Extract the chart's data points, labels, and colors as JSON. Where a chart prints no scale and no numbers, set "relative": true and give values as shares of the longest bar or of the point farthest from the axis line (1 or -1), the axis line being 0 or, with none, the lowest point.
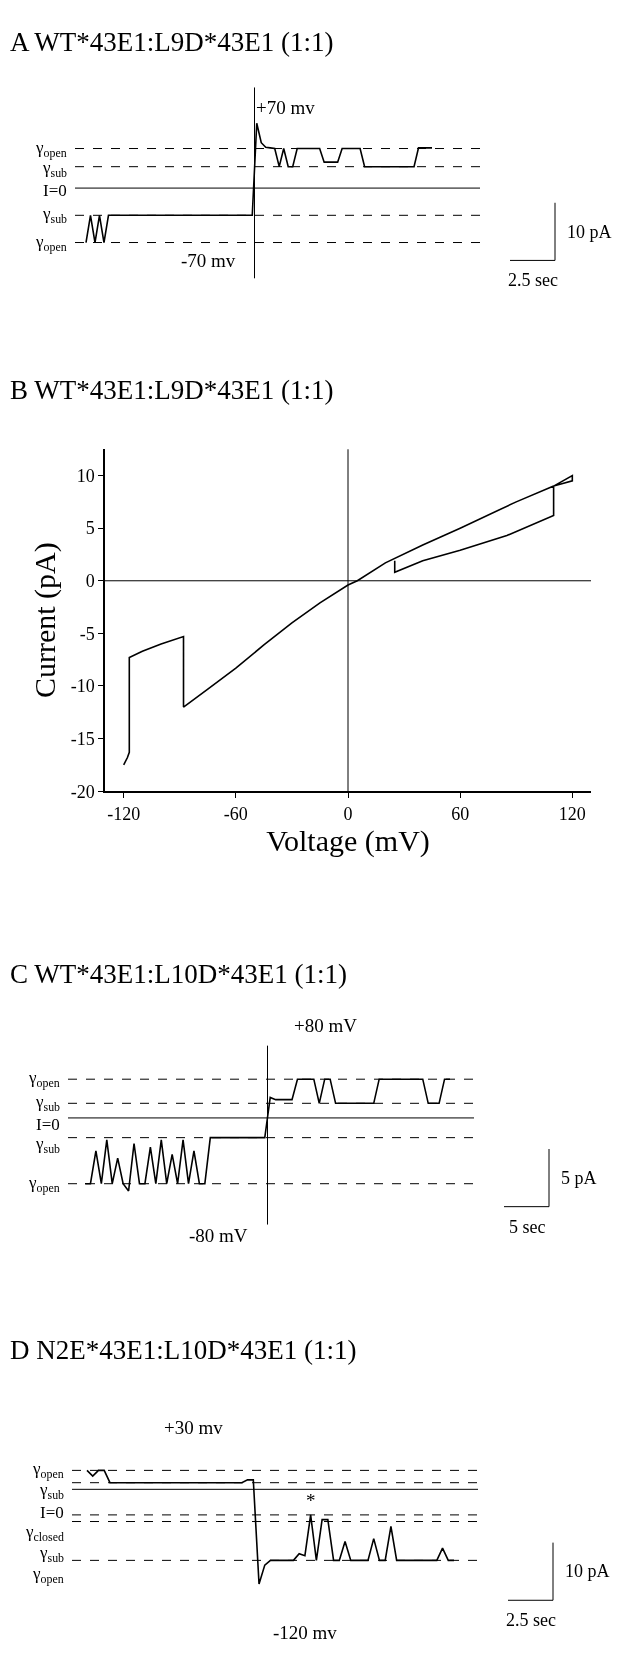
{
  "chart_data": [
    {
      "type": "line",
      "title": "A WT*43E1:L9D*43E1 (1:1)",
      "relative": true,
      "line_style": "solid",
      "marker": "none",
      "categories": [
        null,
        null,
        null,
        null,
        null,
        null,
        null,
        null,
        null,
        null,
        null,
        null,
        null,
        null,
        null,
        null,
        null,
        null,
        null,
        null,
        null,
        null,
        null,
        null,
        null,
        null,
        null,
        null,
        null,
        null,
        null,
        null,
        null,
        null,
        null,
        null,
        null,
        null,
        null,
        null,
        null,
        null,
        null,
        null,
        null,
        null,
        null,
        null,
        null,
        null,
        null,
        null,
        null,
        null,
        null,
        null,
        null,
        null,
        null,
        null,
        null,
        null,
        null,
        null,
        null,
        null,
        null,
        null,
        null,
        null,
        null,
        null,
        null,
        null,
        null,
        null,
        null,
        null
      ],
      "series": [
        {
          "color": "#000000",
          "values": [
            -0.84,
            -0.42,
            -0.84,
            -0.42,
            -0.84,
            -0.42,
            -0.42,
            -0.42,
            -0.42,
            -0.42,
            -0.42,
            -0.42,
            -0.42,
            -0.42,
            -0.42,
            -0.42,
            -0.42,
            -0.42,
            -0.42,
            -0.42,
            -0.42,
            -0.42,
            -0.42,
            -0.42,
            -0.42,
            -0.42,
            -0.42,
            -0.42,
            -0.42,
            -0.42,
            -0.42,
            -0.42,
            -0.42,
            -0.42,
            -0.42,
            -0.42,
            -0.42,
            -0.42,
            1.0,
            0.7,
            0.63,
            0.62,
            0.61,
            0.33,
            0.61,
            0.33,
            0.33,
            0.61,
            0.61,
            0.61,
            0.61,
            0.61,
            0.61,
            0.4,
            0.4,
            0.4,
            0.4,
            0.61,
            0.61,
            0.61,
            0.61,
            0.61,
            0.33,
            0.33,
            0.33,
            0.33,
            0.33,
            0.33,
            0.33,
            0.33,
            0.33,
            0.33,
            0.33,
            0.33,
            0.62,
            0.62,
            0.62,
            0.62
          ]
        }
      ],
      "ref_lines": [
        {
          "axis": "y",
          "value": 0.61,
          "label": "γ$_{open}$",
          "line_style": "dashed",
          "color": "#000000"
        },
        {
          "axis": "y",
          "value": 0.33,
          "label": "γ$_{sub}$",
          "line_style": "dashed",
          "color": "#000000"
        },
        {
          "axis": "y",
          "value": 0,
          "label": "I=0",
          "line_style": "solid",
          "color": "#000000"
        },
        {
          "axis": "y",
          "value": -0.42,
          "label": "γ$_{sub}$",
          "line_style": "dashed",
          "color": "#000000"
        },
        {
          "axis": "y",
          "value": -0.84,
          "label": "γ$_{open}$",
          "line_style": "dashed",
          "color": "#000000"
        }
      ],
      "annotations": [
        "10 pA",
        "2.5 sec",
        "+70 mv",
        "-70 mv"
      ]
    },
    {
      "type": "line",
      "title": "B WT*43E1:L9D*43E1 (1:1)",
      "xlabel": "Voltage (mV)",
      "ylabel": "Current (pA)",
      "xlim": [
        -130,
        130
      ],
      "xticks": [
        -120,
        -60,
        0,
        60,
        120
      ],
      "ylim": [
        -20,
        12.5
      ],
      "yticks": [
        -20,
        -15,
        -10,
        -5,
        0,
        5,
        10
      ],
      "line_style": "solid",
      "marker": "none",
      "series": [
        {
          "color": "#000000",
          "x": [
            -120,
            -118,
            -117,
            -117,
            -110,
            -100,
            -88,
            -88,
            -75,
            -60,
            -45,
            -30,
            -15,
            0,
            5,
            20,
            40,
            60,
            90,
            110,
            120,
            120,
            110,
            110,
            85,
            60,
            40,
            25,
            25
          ],
          "values": [
            -17.5,
            -16.8,
            -16.3,
            -7.3,
            -6.7,
            -6.0,
            -5.3,
            -12.0,
            -10.3,
            -8.3,
            -6.1,
            -4.0,
            -2.1,
            -0.4,
            0,
            1.7,
            3.4,
            5.0,
            7.5,
            9.0,
            10.0,
            9.5,
            9.0,
            6.2,
            4.3,
            2.9,
            1.9,
            0.8,
            1.9
          ]
        }
      ],
      "ref_lines": [
        {
          "axis": "x",
          "value": 0,
          "label": null,
          "line_style": "solid",
          "color": "#000000"
        },
        {
          "axis": "y",
          "value": 0,
          "label": null,
          "line_style": "solid",
          "color": "#000000"
        }
      ]
    },
    {
      "type": "line",
      "title": "C WT*43E1:L10D*43E1 (1:1)",
      "relative": true,
      "line_style": "solid",
      "marker": "none",
      "categories": [
        null,
        null,
        null,
        null,
        null,
        null,
        null,
        null,
        null,
        null,
        null,
        null,
        null,
        null,
        null,
        null,
        null,
        null,
        null,
        null,
        null,
        null,
        null,
        null,
        null,
        null,
        null,
        null,
        null,
        null,
        null,
        null,
        null,
        null,
        null,
        null,
        null,
        null,
        null,
        null,
        null,
        null,
        null,
        null,
        null,
        null,
        null,
        null,
        null,
        null,
        null,
        null,
        null,
        null,
        null,
        null,
        null,
        null,
        null,
        null,
        null,
        null,
        null,
        null,
        null,
        null,
        null,
        null
      ],
      "series": [
        {
          "color": "#000000",
          "values": [
            -0.9,
            -0.9,
            -0.45,
            -0.9,
            -0.3,
            -0.9,
            -0.55,
            -0.9,
            -1.0,
            -0.35,
            -0.9,
            -0.9,
            -0.4,
            -0.9,
            -0.3,
            -0.9,
            -0.5,
            -0.9,
            -0.3,
            -0.9,
            -0.45,
            -0.9,
            -0.9,
            -0.27,
            -0.27,
            -0.27,
            -0.27,
            -0.27,
            -0.27,
            -0.27,
            -0.27,
            -0.27,
            -0.27,
            -0.27,
            0.28,
            0.25,
            0.25,
            0.25,
            0.25,
            0.53,
            0.53,
            0.53,
            0.53,
            0.2,
            0.53,
            0.53,
            0.2,
            0.2,
            0.2,
            0.2,
            0.2,
            0.2,
            0.2,
            0.2,
            0.53,
            0.53,
            0.53,
            0.53,
            0.53,
            0.53,
            0.53,
            0.53,
            0.53,
            0.2,
            0.2,
            0.2,
            0.53,
            0.53
          ]
        }
      ],
      "ref_lines": [
        {
          "axis": "y",
          "value": 0.53,
          "label": "γ$_{open}$",
          "line_style": "dashed",
          "color": "#000000"
        },
        {
          "axis": "y",
          "value": 0.2,
          "label": "γ$_{sub}$",
          "line_style": "dashed",
          "color": "#000000"
        },
        {
          "axis": "y",
          "value": 0,
          "label": "I=0",
          "line_style": "solid",
          "color": "#000000"
        },
        {
          "axis": "y",
          "value": -0.27,
          "label": "γ$_{sub}$",
          "line_style": "dashed",
          "color": "#000000"
        },
        {
          "axis": "y",
          "value": -0.9,
          "label": "γ$_{open}$",
          "line_style": "dashed",
          "color": "#000000"
        }
      ],
      "annotations": [
        "5 pA",
        "5 sec",
        "+80 mV",
        "-80 mV"
      ]
    },
    {
      "type": "line",
      "title": "D N2E*43E1:L10D*43E1 (1:1)",
      "relative": true,
      "line_style": "solid",
      "marker": "none",
      "categories": [
        null,
        null,
        null,
        null,
        null,
        null,
        null,
        null,
        null,
        null,
        null,
        null,
        null,
        null,
        null,
        null,
        null,
        null,
        null,
        null,
        null,
        null,
        null,
        null,
        null,
        null,
        null,
        null,
        null,
        null,
        null,
        null,
        null,
        null,
        null,
        null,
        null,
        null,
        null,
        null,
        null,
        null,
        null,
        null,
        null,
        null,
        null,
        null,
        null,
        null,
        null,
        null,
        null,
        null,
        null,
        null,
        null,
        null,
        null,
        null,
        null,
        null,
        null,
        null,
        null
      ],
      "series": [
        {
          "color": "#000000",
          "values": [
            0.2,
            0.14,
            0.2,
            0.2,
            0.07,
            0.07,
            0.07,
            0.07,
            0.07,
            0.07,
            0.07,
            0.07,
            0.07,
            0.07,
            0.07,
            0.07,
            0.07,
            0.07,
            0.07,
            0.07,
            0.07,
            0.07,
            0.07,
            0.07,
            0.07,
            0.07,
            0.07,
            0.07,
            0.1,
            0.1,
            -1.0,
            -0.8,
            -0.75,
            -0.75,
            -0.75,
            -0.75,
            -0.75,
            -0.68,
            -0.7,
            -0.27,
            -0.75,
            -0.32,
            -0.32,
            -0.75,
            -0.75,
            -0.55,
            -0.75,
            -0.75,
            -0.75,
            -0.75,
            -0.52,
            -0.75,
            -0.75,
            -0.39,
            -0.75,
            -0.75,
            -0.75,
            -0.75,
            -0.75,
            -0.75,
            -0.75,
            -0.75,
            -0.62,
            -0.75,
            -0.75
          ]
        }
      ],
      "ref_lines": [
        {
          "axis": "y",
          "value": 0.2,
          "label": "γ$_{open}$",
          "line_style": "dashed",
          "color": "#000000"
        },
        {
          "axis": "y",
          "value": 0.07,
          "label": "γ$_{sub}$",
          "line_style": "dashed",
          "color": "#000000"
        },
        {
          "axis": "y",
          "value": 0,
          "label": "I=0",
          "line_style": "solid",
          "color": "#000000"
        },
        {
          "axis": "y",
          "value": -0.27,
          "label": "γ$_{closed}$",
          "line_style": "dashed",
          "color": "#000000"
        },
        {
          "axis": "y",
          "value": -0.34,
          "label": "γ$_{sub}$",
          "line_style": "dashed",
          "color": "#000000"
        },
        {
          "axis": "y",
          "value": -0.75,
          "label": "γ$_{open}$",
          "line_style": "dashed",
          "color": "#000000"
        }
      ],
      "annotations": [
        "10 pA",
        "2.5 sec",
        "+30 mv",
        "-120 mv",
        "*"
      ]
    }
  ]
}
